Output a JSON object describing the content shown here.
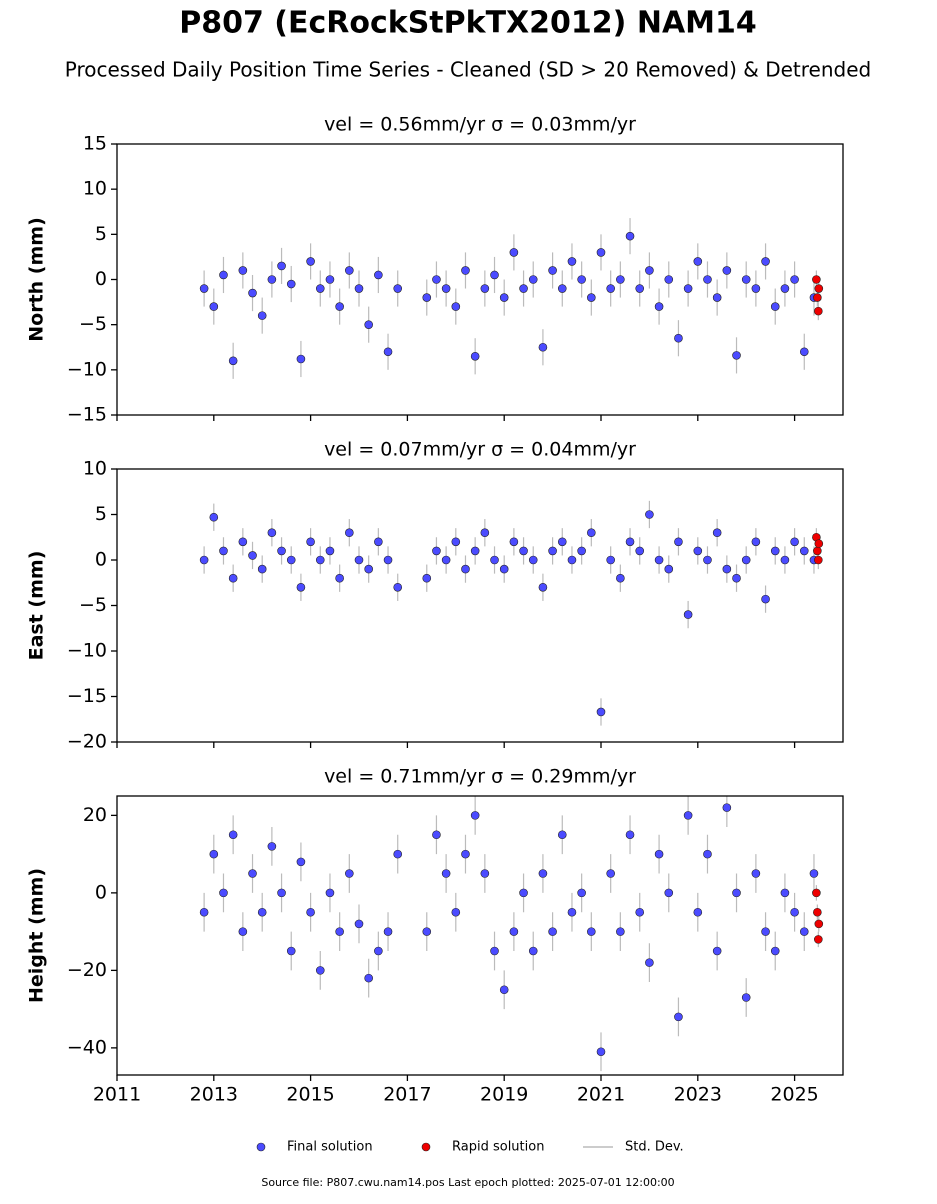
{
  "title": "P807 (EcRockStPkTX2012) NAM14",
  "subtitle": "Processed Daily Position Time Series - Cleaned (SD > 20 Removed) & Detrended",
  "footer": "Source file: P807.cwu.nam14.pos  Last epoch plotted: 2025-07-01 12:00:00",
  "chart_data": [
    {
      "type": "scatter",
      "title": "vel = 0.56mm/yr   σ = 0.03mm/yr",
      "ylabel": "North (mm)",
      "xlim": [
        2011,
        2026
      ],
      "xticks": [
        2011,
        2013,
        2015,
        2017,
        2019,
        2021,
        2023,
        2025
      ],
      "show_xtick_labels": false,
      "ylim": [
        -15,
        15
      ],
      "yticks": [
        {
          "value": -15,
          "label": "−15"
        },
        {
          "value": -10,
          "label": "−10"
        },
        {
          "value": -5,
          "label": "−5"
        },
        0,
        5,
        10,
        15
      ],
      "error_name": "Std. Dev.",
      "error_color": "#bbbbbb",
      "series": [
        {
          "name": "Final solution",
          "color": "#4b4bff",
          "error": 2,
          "x": [
            2012.8,
            2013,
            2013.2,
            2013.4,
            2013.6,
            2013.8,
            2014,
            2014.2,
            2014.4,
            2014.6,
            2014.8,
            2015,
            2015.2,
            2015.4,
            2015.6,
            2015.8,
            2016,
            2016.2,
            2016.4,
            2016.6,
            2016.8,
            2017.4,
            2017.6,
            2017.8,
            2018,
            2018.2,
            2018.4,
            2018.6,
            2018.8,
            2019,
            2019.2,
            2019.4,
            2019.6,
            2019.8,
            2020,
            2020.2,
            2020.4,
            2020.6,
            2020.8,
            2021,
            2021.2,
            2021.4,
            2021.6,
            2021.8,
            2022,
            2022.2,
            2022.4,
            2022.6,
            2022.8,
            2023,
            2023.2,
            2023.4,
            2023.6,
            2023.8,
            2024,
            2024.2,
            2024.4,
            2024.6,
            2024.8,
            2025,
            2025.2,
            2025.4
          ],
          "values": [
            -1,
            -3,
            0.5,
            -9,
            1,
            -1.5,
            -4,
            0,
            1.5,
            -0.5,
            -8.8,
            2,
            -1,
            0,
            -3,
            1,
            -1,
            -5,
            0.5,
            -8,
            -1,
            -2,
            0,
            -1,
            -3,
            1,
            -8.5,
            -1,
            0.5,
            -2,
            3,
            -1,
            0,
            -7.5,
            1,
            -1,
            2,
            0,
            -2,
            3,
            -1,
            0,
            4.8,
            -1,
            1,
            -3,
            0,
            -6.5,
            -1,
            2,
            0,
            -2,
            1,
            -8.4,
            0,
            -1,
            2,
            -3,
            -1,
            0,
            -8,
            -2
          ]
        },
        {
          "name": "Rapid solution",
          "color": "#ee0000",
          "error": 1,
          "x": [
            2025.45,
            2025.47,
            2025.49,
            2025.5
          ],
          "values": [
            0,
            -2,
            -3.5,
            -1
          ]
        }
      ]
    },
    {
      "type": "scatter",
      "title": "vel = 0.07mm/yr   σ = 0.04mm/yr",
      "ylabel": "East (mm)",
      "xlim": [
        2011,
        2026
      ],
      "xticks": [
        2011,
        2013,
        2015,
        2017,
        2019,
        2021,
        2023,
        2025
      ],
      "show_xtick_labels": false,
      "ylim": [
        -20,
        10
      ],
      "yticks": [
        {
          "value": -20,
          "label": "−20"
        },
        {
          "value": -15,
          "label": "−15"
        },
        {
          "value": -10,
          "label": "−10"
        },
        {
          "value": -5,
          "label": "−5"
        },
        0,
        5,
        10
      ],
      "error_color": "#bbbbbb",
      "series": [
        {
          "name": "Final solution",
          "color": "#4b4bff",
          "error": 1.5,
          "x": [
            2012.8,
            2013,
            2013.2,
            2013.4,
            2013.6,
            2013.8,
            2014,
            2014.2,
            2014.4,
            2014.6,
            2014.8,
            2015,
            2015.2,
            2015.4,
            2015.6,
            2015.8,
            2016,
            2016.2,
            2016.4,
            2016.6,
            2016.8,
            2017.4,
            2017.6,
            2017.8,
            2018,
            2018.2,
            2018.4,
            2018.6,
            2018.8,
            2019,
            2019.2,
            2019.4,
            2019.6,
            2019.8,
            2020,
            2020.2,
            2020.4,
            2020.6,
            2020.8,
            2021,
            2021.2,
            2021.4,
            2021.6,
            2021.8,
            2022,
            2022.2,
            2022.4,
            2022.6,
            2022.8,
            2023,
            2023.2,
            2023.4,
            2023.6,
            2023.8,
            2024,
            2024.2,
            2024.4,
            2024.6,
            2024.8,
            2025,
            2025.2,
            2025.4
          ],
          "values": [
            0,
            4.7,
            1,
            -2,
            2,
            0.5,
            -1,
            3,
            1,
            0,
            -3,
            2,
            0,
            1,
            -2,
            3,
            0,
            -1,
            2,
            0,
            -3,
            -2,
            1,
            0,
            2,
            -1,
            1,
            3,
            0,
            -1,
            2,
            1,
            0,
            -3,
            1,
            2,
            0,
            1,
            3,
            -16.7,
            0,
            -2,
            2,
            1,
            5,
            0,
            -1,
            2,
            -6,
            1,
            0,
            3,
            -1,
            -2,
            0,
            2,
            -4.3,
            1,
            0,
            2,
            1,
            0
          ]
        },
        {
          "name": "Rapid solution",
          "color": "#ee0000",
          "error": 1,
          "x": [
            2025.45,
            2025.47,
            2025.49,
            2025.5
          ],
          "values": [
            2.5,
            1,
            0,
            1.8
          ]
        }
      ]
    },
    {
      "type": "scatter",
      "title": "vel = 0.71mm/yr   σ = 0.29mm/yr",
      "ylabel": "Height (mm)",
      "xlim": [
        2011,
        2026
      ],
      "xticks": [
        2011,
        2013,
        2015,
        2017,
        2019,
        2021,
        2023,
        2025
      ],
      "show_xtick_labels": true,
      "ylim": [
        -47,
        25
      ],
      "yticks": [
        {
          "value": -40,
          "label": "−40"
        },
        {
          "value": -20,
          "label": "−20"
        },
        0,
        20
      ],
      "error_color": "#bbbbbb",
      "series": [
        {
          "name": "Final solution",
          "color": "#4b4bff",
          "error": 5,
          "x": [
            2012.8,
            2013,
            2013.2,
            2013.4,
            2013.6,
            2013.8,
            2014,
            2014.2,
            2014.4,
            2014.6,
            2014.8,
            2015,
            2015.2,
            2015.4,
            2015.6,
            2015.8,
            2016,
            2016.2,
            2016.4,
            2016.6,
            2016.8,
            2017.4,
            2017.6,
            2017.8,
            2018,
            2018.2,
            2018.4,
            2018.6,
            2018.8,
            2019,
            2019.2,
            2019.4,
            2019.6,
            2019.8,
            2020,
            2020.2,
            2020.4,
            2020.6,
            2020.8,
            2021,
            2021.2,
            2021.4,
            2021.6,
            2021.8,
            2022,
            2022.2,
            2022.4,
            2022.6,
            2022.8,
            2023,
            2023.2,
            2023.4,
            2023.6,
            2023.8,
            2024,
            2024.2,
            2024.4,
            2024.6,
            2024.8,
            2025,
            2025.2,
            2025.4
          ],
          "values": [
            -5,
            10,
            0,
            15,
            -10,
            5,
            -5,
            12,
            0,
            -15,
            8,
            -5,
            -20,
            0,
            -10,
            5,
            -8,
            -22,
            -15,
            -10,
            10,
            -10,
            15,
            5,
            -5,
            10,
            20,
            5,
            -15,
            -25,
            -10,
            0,
            -15,
            5,
            -10,
            15,
            -5,
            0,
            -10,
            -41,
            5,
            -10,
            15,
            -5,
            -18,
            10,
            0,
            -32,
            20,
            -5,
            10,
            -15,
            22,
            0,
            -27,
            5,
            -10,
            -15,
            0,
            -5,
            -10,
            5
          ]
        },
        {
          "name": "Rapid solution",
          "color": "#ee0000",
          "error": 2,
          "x": [
            2025.45,
            2025.47,
            2025.49,
            2025.5
          ],
          "values": [
            0,
            -5,
            -12,
            -8
          ]
        }
      ]
    }
  ]
}
